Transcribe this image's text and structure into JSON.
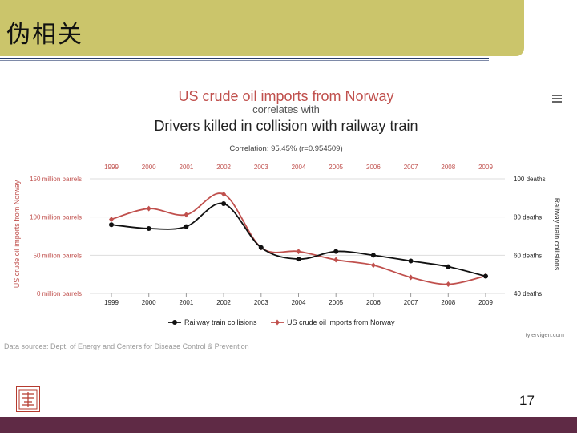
{
  "slide": {
    "title": "伪相关",
    "page_number": "17"
  },
  "colors": {
    "series_rail": "#111111",
    "series_oil": "#c0504d",
    "header_bg": "#cbc56b",
    "footer_bg": "#5f2a45"
  },
  "chart_data": {
    "type": "line",
    "title": "US crude oil imports from Norway",
    "subtitle": "correlates with",
    "title2": "Drivers killed in collision with railway train",
    "correlation": "Correlation: 95.45% (r=0.954509)",
    "categories": [
      "1999",
      "2000",
      "2001",
      "2002",
      "2003",
      "2004",
      "2005",
      "2006",
      "2007",
      "2008",
      "2009"
    ],
    "left_axis": {
      "label": "US crude oil imports from Norway",
      "ylim": [
        0,
        150
      ],
      "ticks": [
        0,
        50,
        100,
        150
      ],
      "tick_labels": [
        "0 million barrels",
        "50 million barrels",
        "100 million barrels",
        "150 million barrels"
      ]
    },
    "right_axis": {
      "label": "Railway train collisions",
      "ylim": [
        40,
        100
      ],
      "ticks": [
        40,
        60,
        80,
        100
      ],
      "tick_labels": [
        "40 deaths",
        "60 deaths",
        "80 deaths",
        "100 deaths"
      ]
    },
    "series": [
      {
        "name": "Railway train collisions",
        "axis": "right",
        "values": [
          76,
          74,
          75,
          87,
          64,
          58,
          62,
          60,
          57,
          54,
          49
        ]
      },
      {
        "name": "US crude oil imports from Norway",
        "axis": "left",
        "values": [
          97,
          111,
          103,
          130,
          60,
          55,
          44,
          37,
          21,
          12,
          23
        ]
      }
    ],
    "credit": "tylervigen.com",
    "sources": "Data sources: Dept. of Energy and Centers for Disease Control & Prevention"
  }
}
